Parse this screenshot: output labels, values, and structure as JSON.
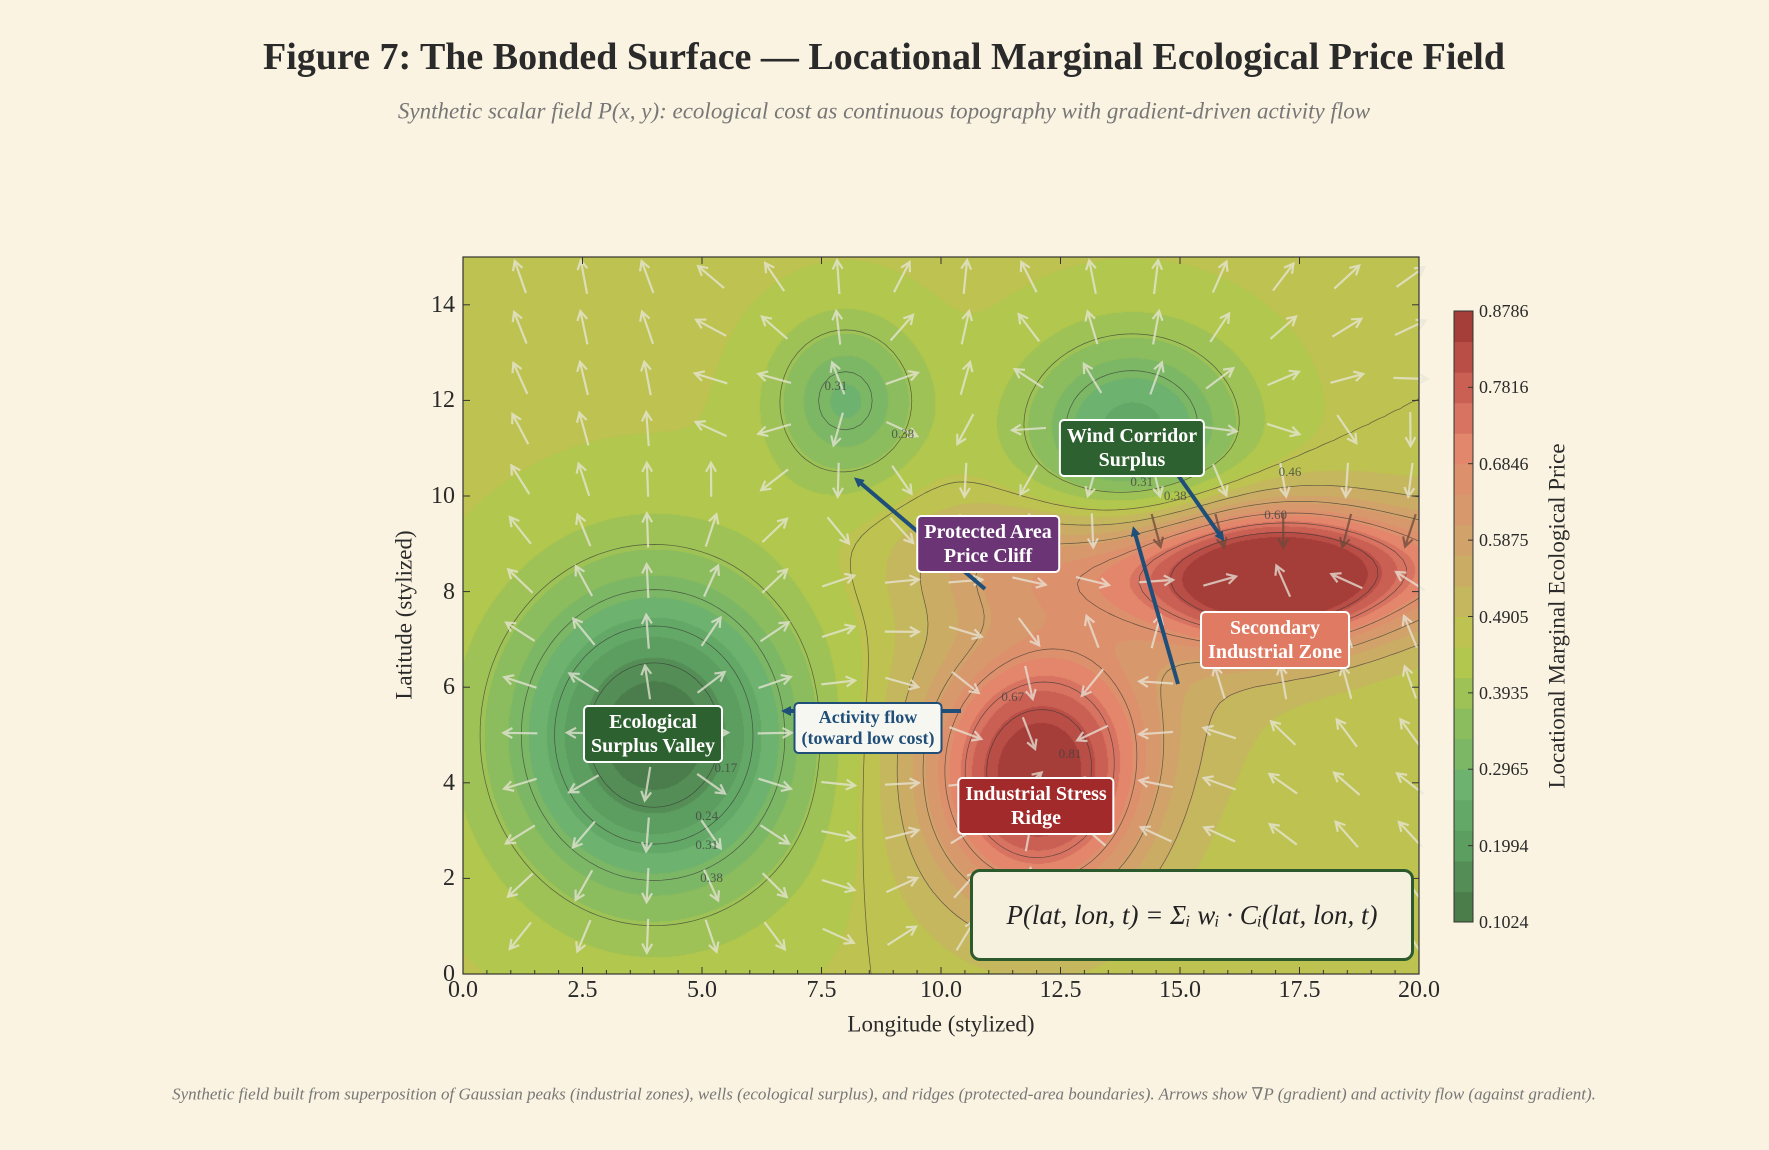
{
  "title": "Figure 7: The Bonded Surface — Locational Marginal Ecological Price Field",
  "subtitle": "Synthetic scalar field P(x, y): ecological cost as continuous topography with gradient-driven activity flow",
  "footer": "Synthetic field built from superposition of Gaussian peaks (industrial zones), wells (ecological surplus), and ridges (protected-area boundaries). Arrows show ∇P (gradient) and activity flow (against gradient).",
  "chart_data": {
    "type": "heatmap",
    "subtype": "filled contour with quiver",
    "xlabel": "Longitude (stylized)",
    "ylabel": "Latitude (stylized)",
    "xlim": [
      0,
      20
    ],
    "ylim": [
      0,
      15
    ],
    "xticks": [
      "0.0",
      "2.5",
      "5.0",
      "7.5",
      "10.0",
      "12.5",
      "15.0",
      "17.5",
      "20.0"
    ],
    "yticks": [
      "0",
      "2",
      "4",
      "6",
      "8",
      "10",
      "12",
      "14"
    ],
    "colorbar": {
      "label": "Locational Marginal Ecological Price",
      "range": [
        0.1024,
        0.8786
      ],
      "ticks": [
        "0.1024",
        "0.1994",
        "0.2965",
        "0.3935",
        "0.4905",
        "0.5875",
        "0.6846",
        "0.7816",
        "0.8786"
      ],
      "colors": [
        "#467446",
        "#5a9a5e",
        "#6cb26e",
        "#8dbd5c",
        "#b9c94a",
        "#c9b064",
        "#d69a6c",
        "#e3866c",
        "#c65a50",
        "#9c3432"
      ]
    },
    "features": [
      {
        "name": "Ecological Surplus Valley",
        "kind": "well",
        "x": 4,
        "y": 5,
        "min_value": 0.1
      },
      {
        "name": "Wind Corridor Surplus",
        "kind": "well",
        "x": 14,
        "y": 11.3,
        "min_value": 0.25
      },
      {
        "kind": "well",
        "x": 8,
        "y": 12,
        "min_value": 0.28
      },
      {
        "name": "Industrial Stress Ridge",
        "kind": "peak",
        "x": 12,
        "y": 4,
        "max_value": 0.85
      },
      {
        "name": "Secondary Industrial Zone",
        "kind": "peak",
        "x": 17,
        "y": 8.2,
        "max_value": 0.88
      },
      {
        "name": "Protected Area Price Cliff",
        "kind": "ridge",
        "y": 9
      }
    ],
    "contour_labels": [
      "0.17",
      "0.24",
      "0.31",
      "0.38",
      "0.31",
      "0.38",
      "0.31",
      "0.38",
      "0.46",
      "0.60",
      "0.67",
      "0.81"
    ],
    "annotations": {
      "valley": [
        "Ecological",
        "Surplus Valley"
      ],
      "flow": [
        "Activity flow",
        "(toward low cost)"
      ],
      "cliff": [
        "Protected Area",
        "Price Cliff"
      ],
      "wind": [
        "Wind Corridor",
        "Surplus"
      ],
      "secondary": [
        "Secondary",
        "Industrial Zone"
      ],
      "stress": [
        "Industrial Stress",
        "Ridge"
      ]
    },
    "formula": "P(lat, lon, t) = Σᵢ wᵢ · Cᵢ(lat, lon, t)",
    "accent_arrow_color": "#1f4e79"
  }
}
